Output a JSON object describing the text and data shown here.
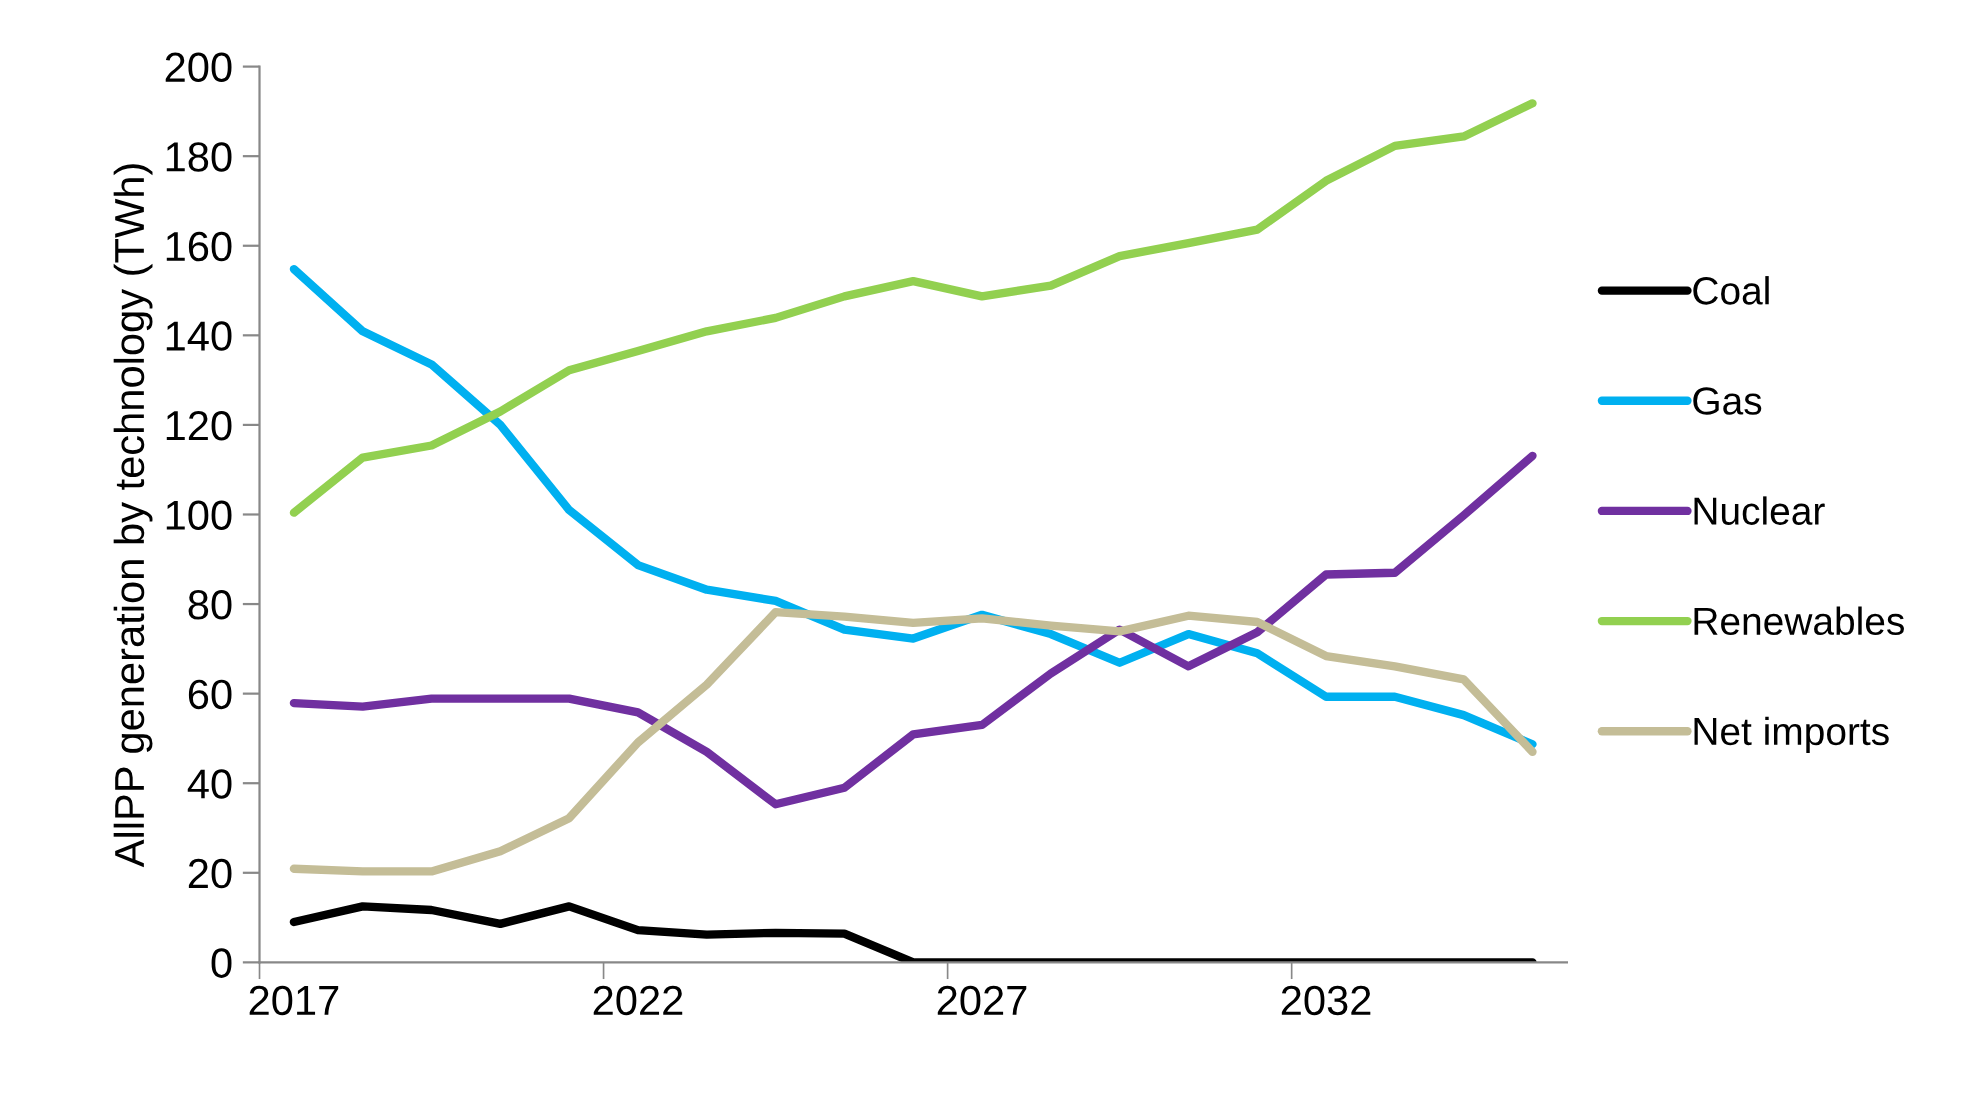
{
  "chart_data": {
    "type": "line",
    "ylabel": "AllPP generation by technology (TWh)",
    "categories": [
      "2017",
      null,
      null,
      null,
      null,
      "2022",
      null,
      null,
      null,
      null,
      "2027",
      null,
      null,
      null,
      null,
      "2032",
      null,
      null,
      null
    ],
    "series": [
      {
        "name": "Coal",
        "color": "#000000",
        "values": [
          9,
          12.5,
          11.7,
          8.6,
          12.5,
          7.2,
          6.2,
          6.6,
          6.4,
          0,
          0,
          0,
          0,
          0,
          0,
          0,
          0,
          0,
          0
        ]
      },
      {
        "name": "Gas",
        "color": "#00b0f0",
        "values": [
          154.8,
          140.9,
          133.5,
          120,
          101,
          88.7,
          83.2,
          80.7,
          74.3,
          72.3,
          77.6,
          73.3,
          66.9,
          73.3,
          69,
          59.3,
          59.3,
          55.2,
          48.7
        ]
      },
      {
        "name": "Nuclear",
        "color": "#7030a0",
        "values": [
          57.9,
          57.1,
          58.9,
          58.9,
          58.9,
          55.8,
          47,
          35.3,
          39,
          50.9,
          53,
          64.5,
          74.3,
          66.1,
          73.7,
          86.6,
          87,
          99.8,
          113.1
        ]
      },
      {
        "name": "Renewables",
        "color": "#92d050",
        "values": [
          100.4,
          112.7,
          115.4,
          123,
          132.2,
          136.5,
          140.9,
          143.9,
          148.7,
          152.1,
          148.7,
          151.1,
          157.7,
          160.6,
          163.6,
          174.5,
          182.3,
          184.4,
          191.8
        ]
      },
      {
        "name": "Net imports",
        "color": "#c4bd97",
        "values": [
          20.9,
          20.3,
          20.3,
          24.8,
          32.2,
          49.1,
          62,
          78.2,
          77.2,
          75.8,
          76.8,
          75.2,
          73.9,
          77.4,
          76,
          68.4,
          66.1,
          63.2,
          47
        ]
      }
    ],
    "ylim": [
      0,
      200
    ],
    "yticks": [
      0,
      20,
      40,
      60,
      80,
      100,
      120,
      140,
      160,
      180,
      200
    ],
    "grid": false,
    "legend": "right",
    "marker": "none",
    "line_style": "solid"
  }
}
